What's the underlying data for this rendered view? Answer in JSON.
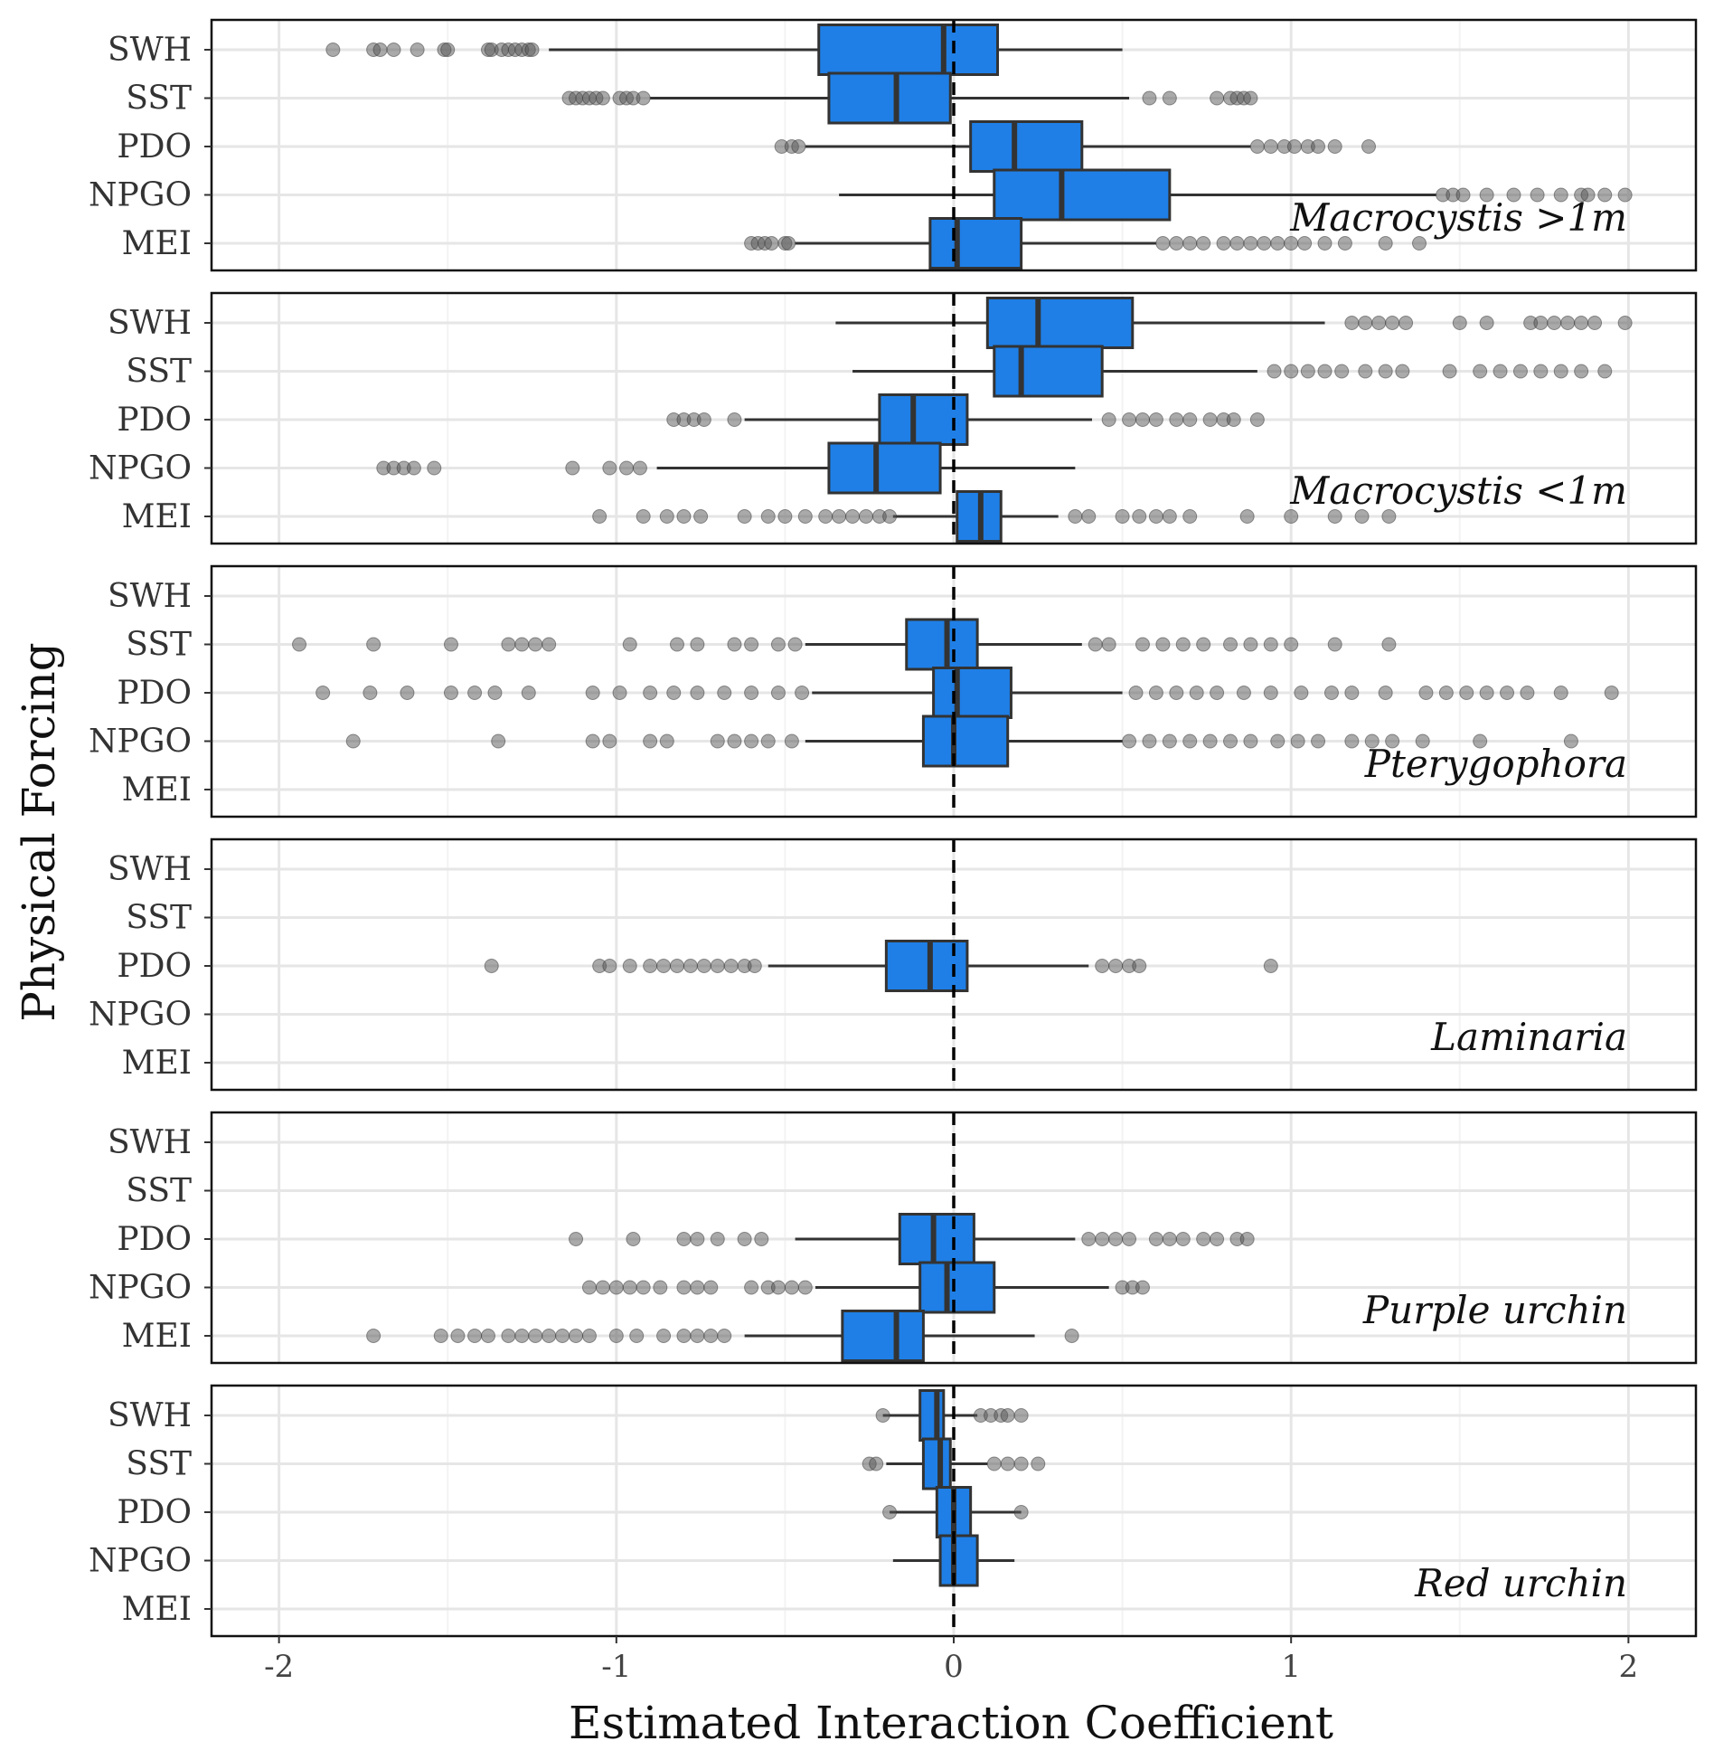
{
  "chart_data": {
    "type": "boxplot",
    "orientation": "horizontal",
    "xlabel": "Estimated Interaction Coefficient",
    "ylabel": "Physical Forcing",
    "xlim": [
      -2.2,
      2.2
    ],
    "xticks": [
      -2,
      -1,
      0,
      1,
      2
    ],
    "reference_line": 0,
    "box_color": "#1f7fe6",
    "outlier_color": "#555555",
    "categories": [
      "SWH",
      "SST",
      "PDO",
      "NPGO",
      "MEI"
    ],
    "panels": [
      {
        "name": "Macrocystis >1m",
        "boxes": [
          {
            "category": "SWH",
            "min": -1.2,
            "q1": -0.4,
            "median": -0.03,
            "q3": 0.13,
            "max": 0.5,
            "outliers": [
              -1.84,
              -1.72,
              -1.7,
              -1.66,
              -1.59,
              -1.51,
              -1.5,
              -1.38,
              -1.37,
              -1.34,
              -1.32,
              -1.3,
              -1.28,
              -1.26,
              -1.25
            ]
          },
          {
            "category": "SST",
            "min": -0.9,
            "q1": -0.37,
            "median": -0.17,
            "q3": -0.01,
            "max": 0.52,
            "outliers": [
              -1.14,
              -1.12,
              -1.1,
              -1.08,
              -1.06,
              -1.04,
              -0.99,
              -0.97,
              -0.95,
              -0.92,
              0.58,
              0.64,
              0.78,
              0.82,
              0.84,
              0.86,
              0.88
            ]
          },
          {
            "category": "PDO",
            "min": -0.44,
            "q1": 0.05,
            "median": 0.18,
            "q3": 0.38,
            "max": 0.88,
            "outliers": [
              -0.51,
              -0.48,
              -0.46,
              0.9,
              0.94,
              0.98,
              1.01,
              1.05,
              1.08,
              1.13,
              1.23
            ]
          },
          {
            "category": "NPGO",
            "min": -0.34,
            "q1": 0.12,
            "median": 0.32,
            "q3": 0.64,
            "max": 1.43,
            "outliers": [
              1.45,
              1.48,
              1.51,
              1.58,
              1.66,
              1.73,
              1.8,
              1.86,
              1.88,
              1.93,
              1.99
            ]
          },
          {
            "category": "MEI",
            "min": -0.47,
            "q1": -0.07,
            "median": 0.01,
            "q3": 0.2,
            "max": 0.6,
            "outliers": [
              -0.6,
              -0.58,
              -0.56,
              -0.54,
              -0.5,
              -0.49,
              0.62,
              0.66,
              0.7,
              0.74,
              0.8,
              0.84,
              0.88,
              0.92,
              0.96,
              1.0,
              1.04,
              1.1,
              1.16,
              1.28,
              1.38
            ]
          }
        ]
      },
      {
        "name": "Macrocystis <1m",
        "boxes": [
          {
            "category": "SWH",
            "min": -0.35,
            "q1": 0.1,
            "median": 0.25,
            "q3": 0.53,
            "max": 1.1,
            "outliers": [
              1.18,
              1.22,
              1.26,
              1.3,
              1.34,
              1.5,
              1.58,
              1.71,
              1.74,
              1.78,
              1.82,
              1.86,
              1.9,
              1.99
            ]
          },
          {
            "category": "SST",
            "min": -0.3,
            "q1": 0.12,
            "median": 0.2,
            "q3": 0.44,
            "max": 0.9,
            "outliers": [
              0.95,
              1.0,
              1.05,
              1.1,
              1.15,
              1.22,
              1.28,
              1.33,
              1.47,
              1.56,
              1.62,
              1.68,
              1.74,
              1.8,
              1.86,
              1.93
            ]
          },
          {
            "category": "PDO",
            "min": -0.62,
            "q1": -0.22,
            "median": -0.12,
            "q3": 0.04,
            "max": 0.41,
            "outliers": [
              -0.83,
              -0.8,
              -0.77,
              -0.74,
              -0.65,
              0.46,
              0.52,
              0.56,
              0.6,
              0.66,
              0.7,
              0.76,
              0.8,
              0.83,
              0.9
            ]
          },
          {
            "category": "NPGO",
            "min": -0.88,
            "q1": -0.37,
            "median": -0.23,
            "q3": -0.04,
            "max": 0.36,
            "outliers": [
              -1.69,
              -1.66,
              -1.63,
              -1.6,
              -1.54,
              -1.13,
              -1.02,
              -0.97,
              -0.93
            ]
          },
          {
            "category": "MEI",
            "min": -0.18,
            "q1": 0.01,
            "median": 0.08,
            "q3": 0.14,
            "max": 0.31,
            "outliers": [
              -1.05,
              -0.92,
              -0.85,
              -0.8,
              -0.75,
              -0.62,
              -0.55,
              -0.5,
              -0.44,
              -0.38,
              -0.34,
              -0.3,
              -0.26,
              -0.22,
              -0.19,
              0.36,
              0.4,
              0.5,
              0.55,
              0.6,
              0.64,
              0.7,
              0.87,
              1.0,
              1.13,
              1.21,
              1.29
            ]
          }
        ]
      },
      {
        "name": "Pterygophora",
        "boxes": [
          {
            "category": "SST",
            "min": -0.44,
            "q1": -0.14,
            "median": -0.02,
            "q3": 0.07,
            "max": 0.38,
            "outliers": [
              -1.94,
              -1.72,
              -1.49,
              -1.32,
              -1.28,
              -1.24,
              -1.2,
              -0.96,
              -0.82,
              -0.76,
              -0.65,
              -0.6,
              -0.52,
              -0.47,
              0.42,
              0.46,
              0.56,
              0.62,
              0.68,
              0.74,
              0.82,
              0.88,
              0.94,
              1.0,
              1.13,
              1.29
            ]
          },
          {
            "category": "PDO",
            "min": -0.42,
            "q1": -0.06,
            "median": 0.01,
            "q3": 0.17,
            "max": 0.5,
            "outliers": [
              -1.87,
              -1.73,
              -1.62,
              -1.49,
              -1.42,
              -1.36,
              -1.26,
              -1.07,
              -0.99,
              -0.9,
              -0.83,
              -0.76,
              -0.68,
              -0.6,
              -0.52,
              -0.45,
              0.54,
              0.6,
              0.66,
              0.72,
              0.78,
              0.86,
              0.94,
              1.03,
              1.12,
              1.18,
              1.28,
              1.4,
              1.46,
              1.52,
              1.58,
              1.64,
              1.7,
              1.8,
              1.95
            ]
          },
          {
            "category": "NPGO",
            "min": -0.44,
            "q1": -0.09,
            "median": 0.0,
            "q3": 0.16,
            "max": 0.5,
            "outliers": [
              -1.78,
              -1.35,
              -1.07,
              -1.02,
              -0.9,
              -0.85,
              -0.7,
              -0.65,
              -0.6,
              -0.55,
              -0.48,
              0.52,
              0.58,
              0.64,
              0.7,
              0.76,
              0.82,
              0.88,
              0.96,
              1.02,
              1.08,
              1.18,
              1.24,
              1.3,
              1.39,
              1.56,
              1.83
            ]
          }
        ]
      },
      {
        "name": "Laminaria",
        "boxes": [
          {
            "category": "PDO",
            "min": -0.55,
            "q1": -0.2,
            "median": -0.07,
            "q3": 0.04,
            "max": 0.4,
            "outliers": [
              -1.37,
              -1.05,
              -1.02,
              -0.96,
              -0.9,
              -0.86,
              -0.82,
              -0.78,
              -0.74,
              -0.7,
              -0.66,
              -0.62,
              -0.59,
              0.44,
              0.48,
              0.52,
              0.55,
              0.94
            ]
          }
        ]
      },
      {
        "name": "Purple urchin",
        "boxes": [
          {
            "category": "PDO",
            "min": -0.47,
            "q1": -0.16,
            "median": -0.06,
            "q3": 0.06,
            "max": 0.36,
            "outliers": [
              -1.12,
              -0.95,
              -0.8,
              -0.76,
              -0.7,
              -0.62,
              -0.57,
              0.4,
              0.44,
              0.48,
              0.52,
              0.6,
              0.64,
              0.68,
              0.74,
              0.78,
              0.84,
              0.87
            ]
          },
          {
            "category": "NPGO",
            "min": -0.41,
            "q1": -0.1,
            "median": -0.02,
            "q3": 0.12,
            "max": 0.46,
            "outliers": [
              -1.08,
              -1.04,
              -1.0,
              -0.96,
              -0.92,
              -0.87,
              -0.8,
              -0.76,
              -0.72,
              -0.6,
              -0.55,
              -0.52,
              -0.48,
              -0.44,
              0.5,
              0.53,
              0.56
            ]
          },
          {
            "category": "MEI",
            "min": -0.62,
            "q1": -0.33,
            "median": -0.17,
            "q3": -0.09,
            "max": 0.24,
            "outliers": [
              -1.72,
              -1.52,
              -1.47,
              -1.42,
              -1.38,
              -1.32,
              -1.28,
              -1.24,
              -1.2,
              -1.16,
              -1.12,
              -1.08,
              -1.0,
              -0.94,
              -0.86,
              -0.8,
              -0.76,
              -0.72,
              -0.68,
              0.35
            ]
          }
        ]
      },
      {
        "name": "Red urchin",
        "boxes": [
          {
            "category": "SWH",
            "min": -0.21,
            "q1": -0.1,
            "median": -0.05,
            "q3": -0.03,
            "max": 0.07,
            "outliers": [
              -0.21,
              0.08,
              0.11,
              0.14,
              0.16,
              0.2
            ]
          },
          {
            "category": "SST",
            "min": -0.2,
            "q1": -0.09,
            "median": -0.04,
            "q3": -0.01,
            "max": 0.1,
            "outliers": [
              -0.25,
              -0.23,
              0.12,
              0.16,
              0.2,
              0.25
            ]
          },
          {
            "category": "PDO",
            "min": -0.19,
            "q1": -0.05,
            "median": 0.0,
            "q3": 0.05,
            "max": 0.2,
            "outliers": [
              -0.19,
              0.2
            ]
          },
          {
            "category": "NPGO",
            "min": -0.18,
            "q1": -0.04,
            "median": 0.0,
            "q3": 0.07,
            "max": 0.18,
            "outliers": []
          }
        ]
      }
    ]
  }
}
